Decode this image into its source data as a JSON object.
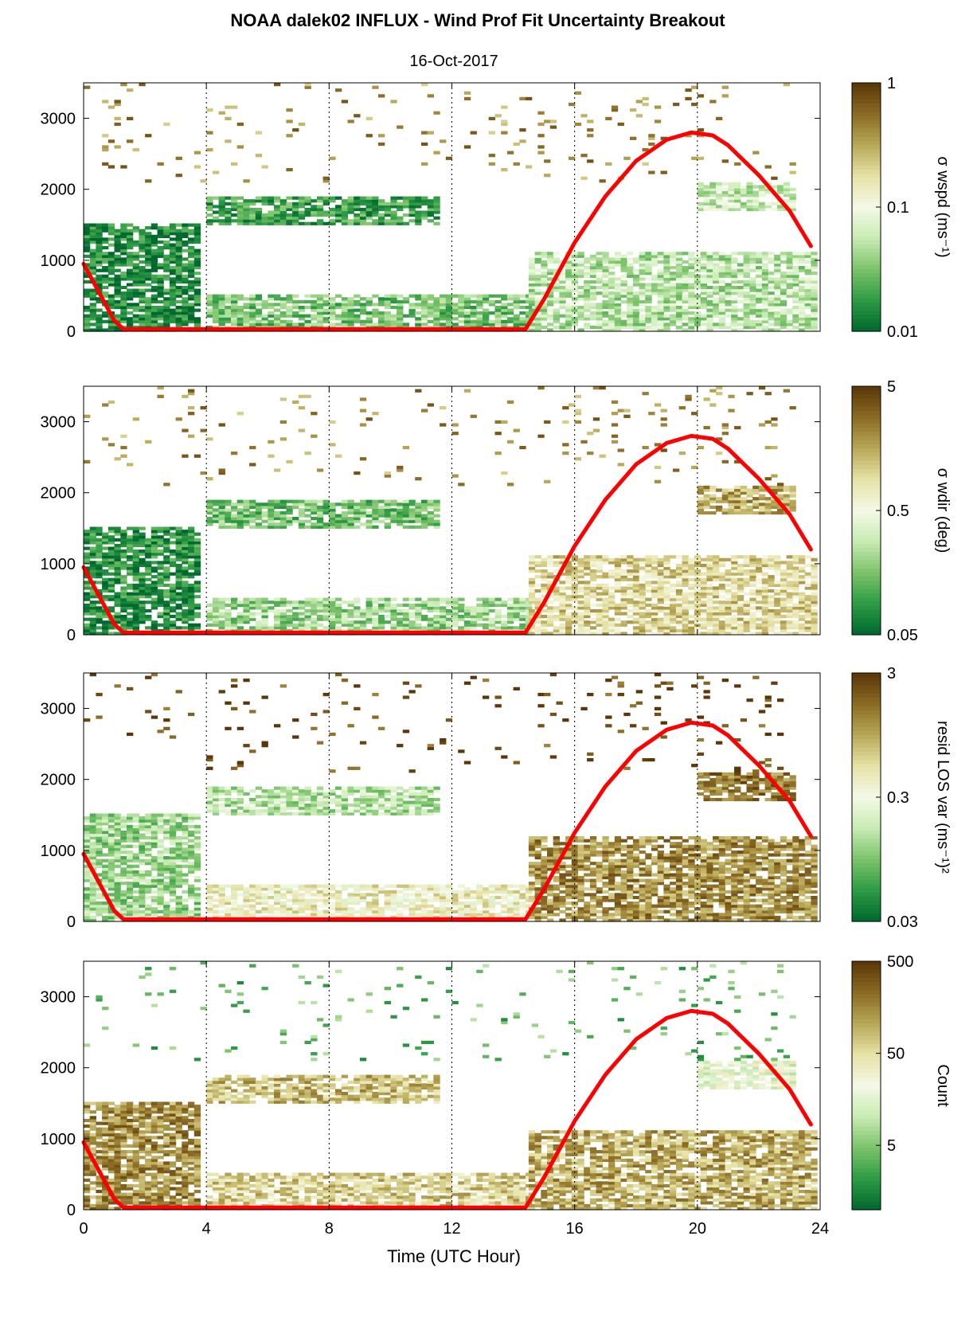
{
  "figure": {
    "title": "NOAA dalek02 INFLUX - Wind Prof Fit Uncertainty Breakout",
    "subtitle": "16-Oct-2017",
    "xlabel": "Time (UTC Hour)"
  },
  "colors": {
    "background": "#ffffff",
    "axis": "#000000",
    "sun_curve": "#ff0000",
    "colormap": [
      "#00682f",
      "#2e9b45",
      "#7cc36a",
      "#c8ebb4",
      "#f4f9e6",
      "#e6e2a6",
      "#b8a757",
      "#8a6a24",
      "#5a3608"
    ]
  },
  "chart_data": [
    {
      "type": "heatmap",
      "panel": 1,
      "colorbar_label": "σ wspd (ms⁻¹)",
      "colorbar_ticks": [
        "1",
        "0.1",
        "0.01"
      ],
      "colorbar_scale": "log",
      "colorbar_range": [
        0.01,
        1
      ],
      "xlim": [
        0,
        24
      ],
      "ylim": [
        0,
        3500
      ],
      "xticks": [
        "0",
        "4",
        "8",
        "12",
        "16",
        "20",
        "24"
      ],
      "yticks": [
        "0",
        "1000",
        "2000",
        "3000"
      ],
      "vertical_dotted_lines_x": [
        4,
        8,
        12,
        16,
        20
      ],
      "regions": [
        {
          "t": [
            0,
            3.8
          ],
          "h": [
            0,
            1500
          ],
          "value": 0.015
        },
        {
          "t": [
            4,
            11.5
          ],
          "h": [
            1500,
            1900
          ],
          "value": 0.02
        },
        {
          "t": [
            4,
            14.5
          ],
          "h": [
            0,
            500
          ],
          "value": 0.03
        },
        {
          "t": [
            14.5,
            23.8
          ],
          "h": [
            0,
            1100
          ],
          "value": 0.05
        },
        {
          "t": [
            20,
            23
          ],
          "h": [
            1700,
            2100
          ],
          "value": 0.06
        },
        {
          "t": [
            0,
            23
          ],
          "h": [
            2100,
            3500
          ],
          "value": 0.4
        }
      ]
    },
    {
      "type": "heatmap",
      "panel": 2,
      "colorbar_label": "σ wdir (deg)",
      "colorbar_ticks": [
        "5",
        "0.5",
        "0.05"
      ],
      "colorbar_scale": "log",
      "colorbar_range": [
        0.05,
        5
      ],
      "xlim": [
        0,
        24
      ],
      "ylim": [
        0,
        3500
      ],
      "xticks": [
        "0",
        "4",
        "8",
        "12",
        "16",
        "20",
        "24"
      ],
      "yticks": [
        "0",
        "1000",
        "2000",
        "3000"
      ],
      "vertical_dotted_lines_x": [
        4,
        8,
        12,
        16,
        20
      ],
      "regions": [
        {
          "t": [
            0,
            3.8
          ],
          "h": [
            0,
            1500
          ],
          "value": 0.08
        },
        {
          "t": [
            4,
            11.5
          ],
          "h": [
            1500,
            1900
          ],
          "value": 0.15
        },
        {
          "t": [
            4,
            14.5
          ],
          "h": [
            0,
            500
          ],
          "value": 0.2
        },
        {
          "t": [
            14.5,
            23.8
          ],
          "h": [
            0,
            1100
          ],
          "value": 1.0
        },
        {
          "t": [
            20,
            23
          ],
          "h": [
            1700,
            2100
          ],
          "value": 1.5
        },
        {
          "t": [
            0,
            23
          ],
          "h": [
            2100,
            3500
          ],
          "value": 2.0
        }
      ]
    },
    {
      "type": "heatmap",
      "panel": 3,
      "colorbar_label": "resid LOS var (ms⁻¹)²",
      "colorbar_ticks": [
        "3",
        "0.3",
        "0.03"
      ],
      "colorbar_scale": "log",
      "colorbar_range": [
        0.03,
        3
      ],
      "xlim": [
        0,
        24
      ],
      "ylim": [
        0,
        3500
      ],
      "xticks": [
        "0",
        "4",
        "8",
        "12",
        "16",
        "20",
        "24"
      ],
      "yticks": [
        "0",
        "1000",
        "2000",
        "3000"
      ],
      "vertical_dotted_lines_x": [
        4,
        8,
        12,
        16,
        20
      ],
      "regions": [
        {
          "t": [
            0,
            3.8
          ],
          "h": [
            0,
            1500
          ],
          "value": 0.12
        },
        {
          "t": [
            4,
            11.5
          ],
          "h": [
            1500,
            1900
          ],
          "value": 0.15
        },
        {
          "t": [
            4,
            14.5
          ],
          "h": [
            0,
            500
          ],
          "value": 0.4
        },
        {
          "t": [
            14.5,
            23.8
          ],
          "h": [
            0,
            1200
          ],
          "value": 1.2
        },
        {
          "t": [
            20,
            23
          ],
          "h": [
            1700,
            2100
          ],
          "value": 1.5
        },
        {
          "t": [
            0,
            23
          ],
          "h": [
            2100,
            3500
          ],
          "value": 2.5
        }
      ]
    },
    {
      "type": "heatmap",
      "panel": 4,
      "colorbar_label": "Count",
      "colorbar_ticks": [
        "500",
        "50",
        "5"
      ],
      "colorbar_scale": "log",
      "colorbar_range": [
        1,
        500
      ],
      "xlim": [
        0,
        24
      ],
      "ylim": [
        0,
        3500
      ],
      "xticks": [
        "0",
        "4",
        "8",
        "12",
        "16",
        "20",
        "24"
      ],
      "yticks": [
        "0",
        "1000",
        "2000",
        "3000"
      ],
      "vertical_dotted_lines_x": [
        4,
        8,
        12,
        16,
        20
      ],
      "regions": [
        {
          "t": [
            0,
            3.8
          ],
          "h": [
            0,
            1500
          ],
          "value": 150
        },
        {
          "t": [
            4,
            11.5
          ],
          "h": [
            1500,
            1900
          ],
          "value": 80
        },
        {
          "t": [
            4,
            14.5
          ],
          "h": [
            0,
            500
          ],
          "value": 60
        },
        {
          "t": [
            14.5,
            23.8
          ],
          "h": [
            0,
            1100
          ],
          "value": 100
        },
        {
          "t": [
            20,
            23
          ],
          "h": [
            1700,
            2100
          ],
          "value": 20
        },
        {
          "t": [
            0,
            23
          ],
          "h": [
            2100,
            3500
          ],
          "value": 4
        }
      ]
    }
  ],
  "sun_curve": {
    "t": [
      0,
      0.5,
      1.0,
      1.3,
      2,
      4,
      8,
      12,
      14.4,
      15,
      16,
      17,
      18,
      19,
      19.8,
      20.5,
      21,
      22,
      23,
      23.7
    ],
    "h": [
      950,
      550,
      150,
      30,
      30,
      30,
      30,
      30,
      30,
      450,
      1250,
      1900,
      2400,
      2700,
      2800,
      2760,
      2620,
      2200,
      1700,
      1200
    ]
  }
}
